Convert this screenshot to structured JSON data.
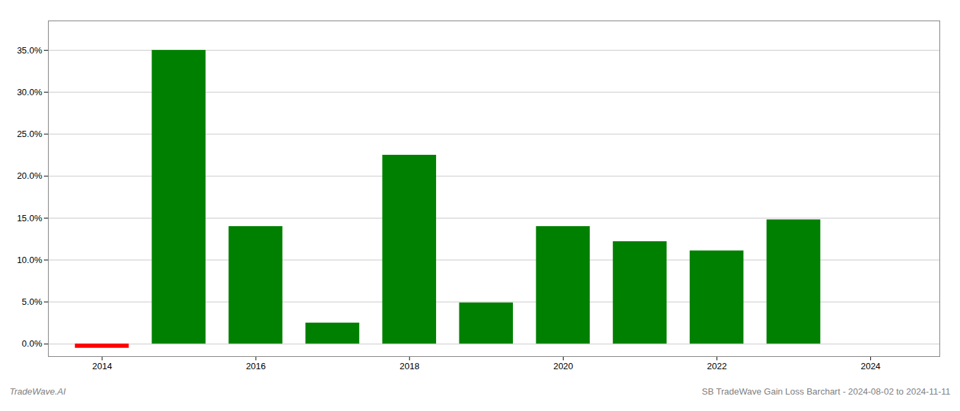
{
  "chart_data": {
    "type": "bar",
    "x": [
      2014,
      2015,
      2016,
      2017,
      2018,
      2019,
      2020,
      2021,
      2022,
      2023
    ],
    "values": [
      -0.005,
      0.35,
      0.14,
      0.025,
      0.225,
      0.049,
      0.14,
      0.122,
      0.111,
      0.148
    ],
    "colors": [
      "#ff0000",
      "#008000",
      "#008000",
      "#008000",
      "#008000",
      "#008000",
      "#008000",
      "#008000",
      "#008000",
      "#008000"
    ],
    "xlim": [
      2013.3,
      2024.9
    ],
    "xticks": [
      2014,
      2016,
      2018,
      2020,
      2022,
      2024
    ],
    "ylim": [
      -0.015,
      0.385
    ],
    "yticks": [
      {
        "value": 0.0,
        "label": "0.0%"
      },
      {
        "value": 0.05,
        "label": "5.0%"
      },
      {
        "value": 0.1,
        "label": "10.0%"
      },
      {
        "value": 0.15,
        "label": "15.0%"
      },
      {
        "value": 0.2,
        "label": "20.0%"
      },
      {
        "value": 0.25,
        "label": "25.0%"
      },
      {
        "value": 0.3,
        "label": "30.0%"
      },
      {
        "value": 0.35,
        "label": "35.0%"
      }
    ],
    "grid": true,
    "annotations": [
      "TradeWave.AI",
      "SB TradeWave Gain Loss Barchart - 2024-08-02 to 2024-11-11"
    ]
  }
}
